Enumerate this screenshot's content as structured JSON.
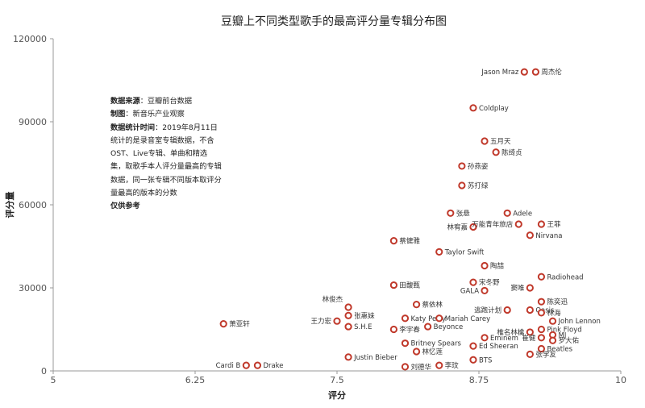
{
  "chart_data": {
    "type": "scatter",
    "title": "豆瓣上不同类型歌手的最高评分量专辑分布图",
    "xlabel": "评分",
    "ylabel": "评分量",
    "xlim": [
      5,
      10
    ],
    "ylim": [
      0,
      120000
    ],
    "x_ticks": [
      "5",
      "6.25",
      "7.5",
      "8.75",
      "10"
    ],
    "y_ticks": [
      "0",
      "30000",
      "60000",
      "90000",
      "120000"
    ],
    "grid": false,
    "marker_color": "#c0392b",
    "points": [
      {
        "label": "Jason Mraz",
        "x": 9.15,
        "y": 108000
      },
      {
        "label": "周杰伦",
        "x": 9.25,
        "y": 108000
      },
      {
        "label": "Coldplay",
        "x": 8.7,
        "y": 95000
      },
      {
        "label": "五月天",
        "x": 8.8,
        "y": 83000
      },
      {
        "label": "陈绮贞",
        "x": 8.9,
        "y": 79000
      },
      {
        "label": "孙燕姿",
        "x": 8.6,
        "y": 74000
      },
      {
        "label": "苏打绿",
        "x": 8.6,
        "y": 67000
      },
      {
        "label": "张悬",
        "x": 8.5,
        "y": 57000
      },
      {
        "label": "Adele",
        "x": 9.0,
        "y": 57000
      },
      {
        "label": "林宥嘉",
        "x": 8.7,
        "y": 52000
      },
      {
        "label": "万能青年旅店",
        "x": 9.1,
        "y": 53000
      },
      {
        "label": "王菲",
        "x": 9.3,
        "y": 53000
      },
      {
        "label": "Nirvana",
        "x": 9.2,
        "y": 49000
      },
      {
        "label": "蔡健雅",
        "x": 8.0,
        "y": 47000
      },
      {
        "label": "Taylor Swift",
        "x": 8.4,
        "y": 43000
      },
      {
        "label": "陶喆",
        "x": 8.8,
        "y": 38000
      },
      {
        "label": "Radiohead",
        "x": 9.3,
        "y": 34000
      },
      {
        "label": "田馥甄",
        "x": 8.0,
        "y": 31000
      },
      {
        "label": "宋冬野",
        "x": 8.7,
        "y": 32000
      },
      {
        "label": "窦唯",
        "x": 9.2,
        "y": 30000
      },
      {
        "label": "GALA",
        "x": 8.8,
        "y": 29000
      },
      {
        "label": "林俊杰",
        "x": 7.6,
        "y": 23000
      },
      {
        "label": "蔡依林",
        "x": 8.2,
        "y": 24000
      },
      {
        "label": "陈奕迅",
        "x": 9.3,
        "y": 25000
      },
      {
        "label": "逃跑计划",
        "x": 9.0,
        "y": 22000
      },
      {
        "label": "Oasis",
        "x": 9.2,
        "y": 22000
      },
      {
        "label": "林海",
        "x": 9.3,
        "y": 21000
      },
      {
        "label": "张惠妹",
        "x": 7.6,
        "y": 20000
      },
      {
        "label": "Katy Perry",
        "x": 8.1,
        "y": 19000
      },
      {
        "label": "Mariah Carey",
        "x": 8.4,
        "y": 19000
      },
      {
        "label": "王力宏",
        "x": 7.5,
        "y": 18000
      },
      {
        "label": "萧亚轩",
        "x": 6.5,
        "y": 17000
      },
      {
        "label": "John Lennon",
        "x": 9.4,
        "y": 18000
      },
      {
        "label": "S.H.E",
        "x": 7.6,
        "y": 16000
      },
      {
        "label": "李宇春",
        "x": 8.0,
        "y": 15000
      },
      {
        "label": "Beyonce",
        "x": 8.3,
        "y": 16000
      },
      {
        "label": "椎名林檎",
        "x": 9.2,
        "y": 14000
      },
      {
        "label": "Pink Floyd",
        "x": 9.3,
        "y": 15000
      },
      {
        "label": "MJ",
        "x": 9.4,
        "y": 13000
      },
      {
        "label": "崔健",
        "x": 9.3,
        "y": 12000
      },
      {
        "label": "罗大佑",
        "x": 9.4,
        "y": 11000
      },
      {
        "label": "Eminem",
        "x": 8.8,
        "y": 12000
      },
      {
        "label": "Britney Spears",
        "x": 8.1,
        "y": 10000
      },
      {
        "label": "Ed Sheeran",
        "x": 8.7,
        "y": 9000
      },
      {
        "label": "Beatles",
        "x": 9.3,
        "y": 8000
      },
      {
        "label": "林忆莲",
        "x": 8.2,
        "y": 7000
      },
      {
        "label": "张学友",
        "x": 9.2,
        "y": 6000
      },
      {
        "label": "Justin Bieber",
        "x": 7.6,
        "y": 5000
      },
      {
        "label": "BTS",
        "x": 8.7,
        "y": 4000
      },
      {
        "label": "Cardi B",
        "x": 6.7,
        "y": 2000
      },
      {
        "label": "Drake",
        "x": 6.8,
        "y": 2000
      },
      {
        "label": "刘德华",
        "x": 8.1,
        "y": 1500
      },
      {
        "label": "李玟",
        "x": 8.4,
        "y": 2000
      }
    ]
  },
  "note": {
    "source_label": "数据来源",
    "source_value": "：豆瓣前台数据",
    "maker_label": "制图",
    "maker_value": "：新音乐产业观察",
    "time_label": "数据统计时间",
    "time_value": "：2019年8月11日",
    "body": "统计的是录音室专辑数据，不含OST、Live专辑、单曲和精选集，取歌手本人评分量最高的专辑数据，同一张专辑不同版本取评分量最高的版本的分数",
    "disclaimer": "仅供参考"
  }
}
